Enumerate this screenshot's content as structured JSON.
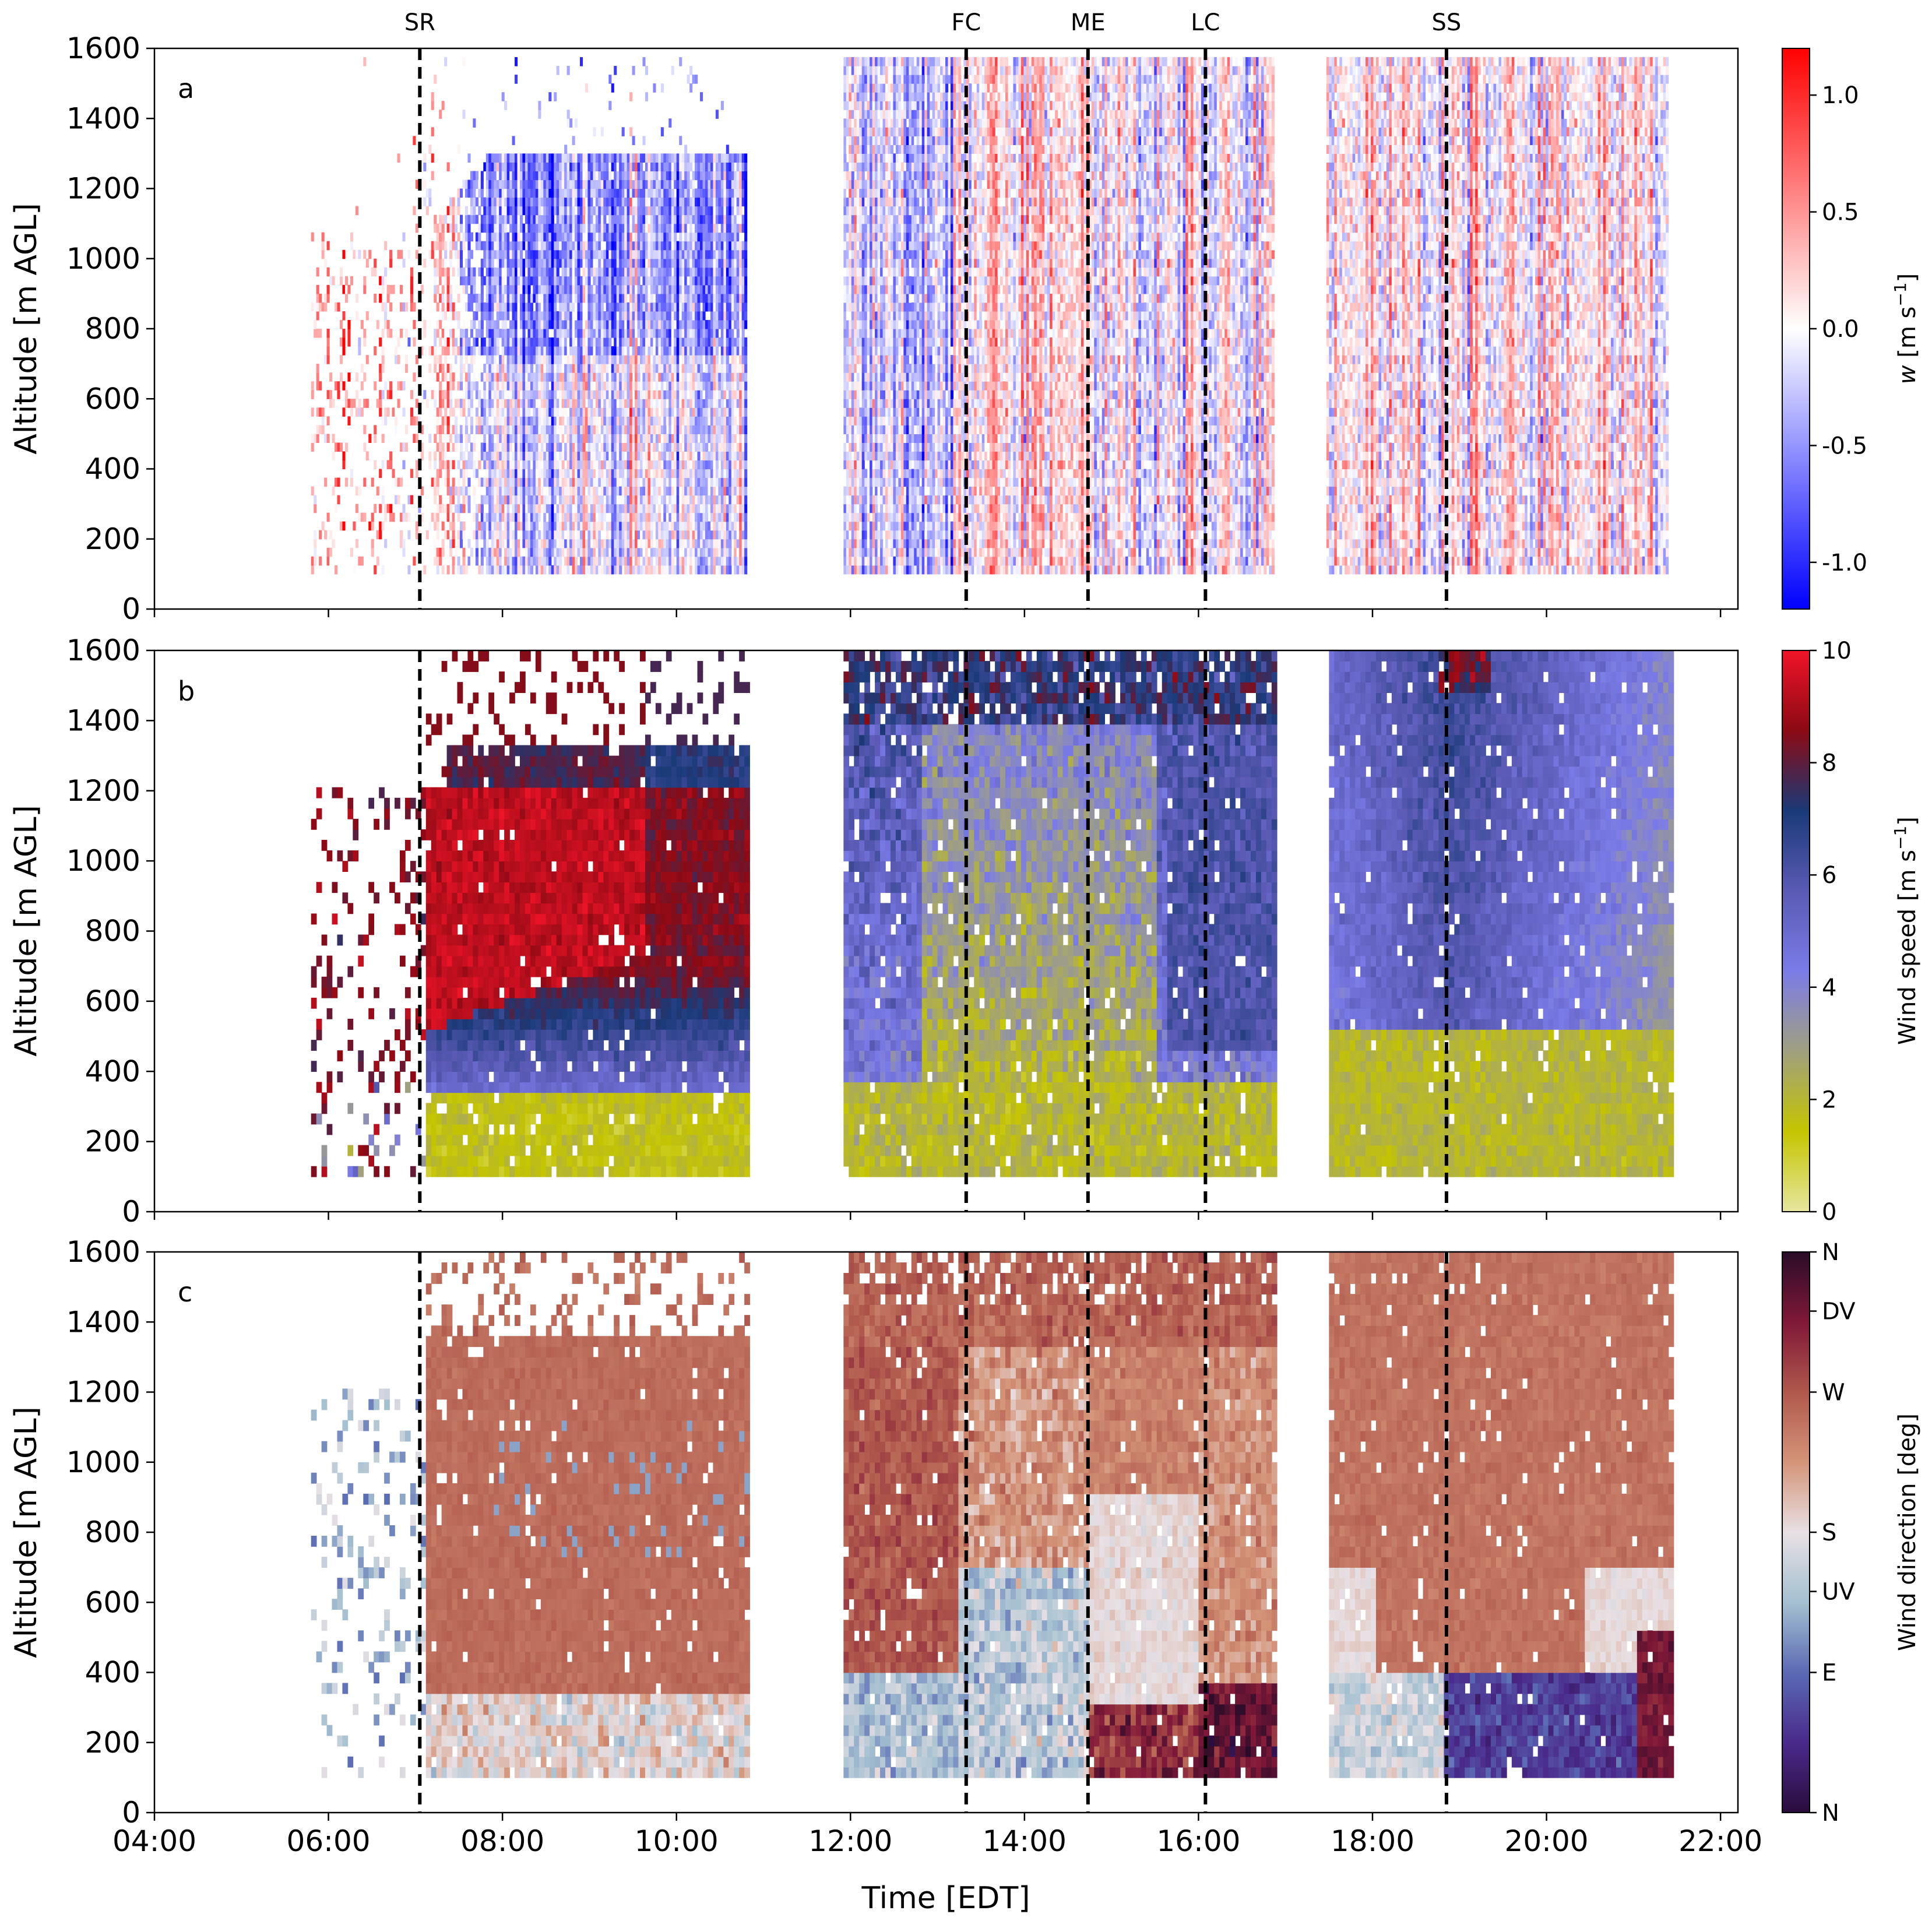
{
  "chart_data": {
    "type": "heatmap",
    "shared_x": {
      "title": "Time [EDT]",
      "range_hours": [
        4,
        22.2
      ],
      "ticks": [
        4,
        6,
        8,
        10,
        12,
        14,
        16,
        18,
        20,
        22
      ],
      "tick_labels": [
        "04:00",
        "06:00",
        "08:00",
        "10:00",
        "12:00",
        "14:00",
        "16:00",
        "18:00",
        "20:00",
        "22:00"
      ]
    },
    "events": [
      {
        "label": "SR",
        "time_hours": 7.05
      },
      {
        "label": "FC",
        "time_hours": 13.33
      },
      {
        "label": "ME",
        "time_hours": 14.73
      },
      {
        "label": "LC",
        "time_hours": 16.08
      },
      {
        "label": "SS",
        "time_hours": 18.85
      }
    ],
    "sampling_windows_hours": [
      [
        5.8,
        10.8
      ],
      [
        11.9,
        16.85
      ],
      [
        17.45,
        21.4
      ]
    ],
    "panels": [
      {
        "id": "a",
        "panel_label": "a",
        "quantity": "vertical velocity",
        "ylabel": "Altitude [m AGL]",
        "ylim": [
          0,
          1600
        ],
        "yticks": [
          0,
          200,
          400,
          600,
          800,
          1000,
          1200,
          1400,
          1600
        ],
        "colorbar": {
          "label_var": "w",
          "label_unit": " [m s",
          "label_exp": "−1",
          "label_close": "]",
          "range": [
            -1.2,
            1.2
          ],
          "ticks": [
            -1.0,
            -0.5,
            0.0,
            0.5,
            1.0
          ],
          "tick_labels": [
            "-1.0",
            "-0.5",
            "0.0",
            "0.5",
            "1.0"
          ],
          "colormap": [
            "#0000ff",
            "#ffffff",
            "#ff0000"
          ]
        },
        "description_values": {
          "morning_convective_layer_top_m": 1300,
          "max_range_gate_m": 1560,
          "lowest_gate_m": 100
        }
      },
      {
        "id": "b",
        "panel_label": "b",
        "quantity": "horizontal wind speed",
        "ylabel": "Altitude [m AGL]",
        "ylim": [
          0,
          1600
        ],
        "yticks": [
          0,
          200,
          400,
          600,
          800,
          1000,
          1200,
          1400,
          1600
        ],
        "colorbar": {
          "label": "Wind speed [m s",
          "label_exp": "−1",
          "label_close": "]",
          "range": [
            0,
            10
          ],
          "ticks": [
            0,
            2,
            4,
            6,
            8,
            10
          ],
          "tick_labels": [
            "0",
            "2",
            "4",
            "6",
            "8",
            "10"
          ],
          "colormap": [
            "#e6e6a0",
            "#c4c400",
            "#a0a080",
            "#7b7be8",
            "#5a5ab4",
            "#1a3a78",
            "#8b0a14",
            "#f01428"
          ]
        },
        "description_values": {
          "morning_jet_layer_m": [
            500,
            1300
          ],
          "morning_jet_speed_ms": 9.5,
          "afternoon_low_level_speed_ms": 2,
          "evening_aloft_speed_ms": 6
        }
      },
      {
        "id": "c",
        "panel_label": "c",
        "quantity": "wind direction",
        "ylabel": "Altitude [m AGL]",
        "ylim": [
          0,
          1600
        ],
        "yticks": [
          0,
          200,
          400,
          600,
          800,
          1000,
          1200,
          1400,
          1600
        ],
        "colorbar": {
          "label": "Wind direction [deg]",
          "range_deg": [
            0,
            360
          ],
          "ticks_deg": [
            0,
            90,
            142,
            180,
            270,
            322,
            360
          ],
          "tick_labels": [
            "N",
            "E",
            "UV",
            "S",
            "W",
            "DV",
            "N"
          ],
          "colormap": [
            "#2a0c3c",
            "#4a2a8c",
            "#5a6ab4",
            "#a4c0d0",
            "#e8e0e4",
            "#d49478",
            "#b0584c",
            "#801838",
            "#2a0c28"
          ]
        },
        "description_values": {
          "aloft_direction": "W",
          "near_surface_morning": "S",
          "evening_low_level": "E"
        }
      }
    ]
  }
}
